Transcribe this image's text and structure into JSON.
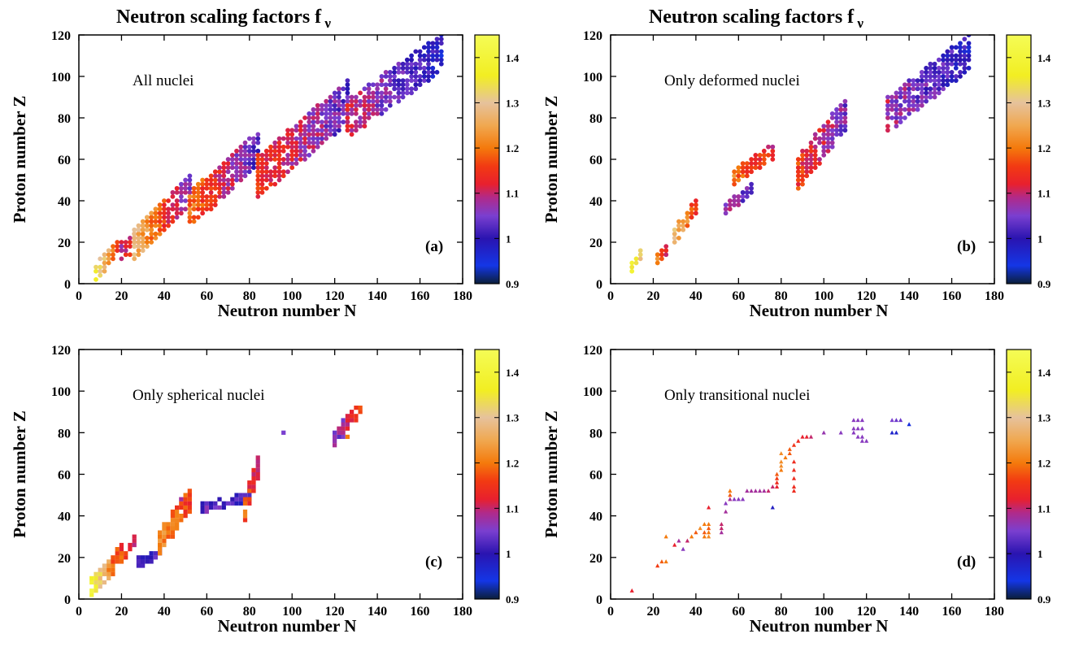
{
  "colormap": {
    "range": [
      0.9,
      1.45
    ],
    "stops": [
      [
        0.9,
        "#0b1f3a"
      ],
      [
        0.94,
        "#1436e6"
      ],
      [
        1.0,
        "#2a14b0"
      ],
      [
        1.05,
        "#7a3fd0"
      ],
      [
        1.09,
        "#b02a8a"
      ],
      [
        1.12,
        "#e8202e"
      ],
      [
        1.16,
        "#f23a12"
      ],
      [
        1.2,
        "#f47a0c"
      ],
      [
        1.25,
        "#f0a850"
      ],
      [
        1.3,
        "#e6c29c"
      ],
      [
        1.36,
        "#f2ee22"
      ],
      [
        1.45,
        "#f4fc56"
      ]
    ]
  },
  "colorbar_ticks": [
    "0.9",
    "1",
    "1.1",
    "1.2",
    "1.3",
    "1.4"
  ],
  "axis_titles": {
    "x": "Neutron number  N",
    "y": "Proton number  Z"
  },
  "chart_data": [
    {
      "type": "scatter",
      "panel_label": "(a)",
      "annotation": "All nuclei",
      "title": "Neutron scaling factors f",
      "title_sub": "ν",
      "marker": "circle",
      "xlabel": "Neutron number  N",
      "ylabel": "Proton number  Z",
      "xlim": [
        0,
        180
      ],
      "ylim": [
        0,
        120
      ],
      "xticks": [
        "0",
        "20",
        "40",
        "60",
        "80",
        "100",
        "120",
        "140",
        "160",
        "180"
      ],
      "yticks": [
        "0",
        "20",
        "40",
        "60",
        "80",
        "100",
        "120"
      ],
      "colorbar": {
        "min": 0.9,
        "max": 1.45
      },
      "regions": [
        {
          "n0": 8,
          "n1": 20,
          "z0": 6,
          "z1": 20,
          "f0": 1.36,
          "f1": 1.12
        },
        {
          "n0": 20,
          "n1": 34,
          "z0": 14,
          "z1": 30,
          "f0": 1.1,
          "f1": 1.22
        },
        {
          "n0": 26,
          "n1": 52,
          "z0": 20,
          "z1": 46,
          "f0": 1.28,
          "f1": 1.05
        },
        {
          "n0": 52,
          "n1": 84,
          "z0": 36,
          "z1": 66,
          "f0": 1.2,
          "f1": 1.02
        },
        {
          "n0": 84,
          "n1": 126,
          "z0": 52,
          "z1": 88,
          "f0": 1.15,
          "f1": 1.03
        },
        {
          "n0": 126,
          "n1": 170,
          "z0": 80,
          "z1": 112,
          "f0": 1.1,
          "f1": 0.98
        }
      ]
    },
    {
      "type": "scatter",
      "panel_label": "(b)",
      "annotation": "Only deformed nuclei",
      "title": "Neutron scaling factors f",
      "title_sub": "ν",
      "marker": "circle",
      "xlabel": "Neutron number  N",
      "ylabel": "Proton number  Z",
      "xlim": [
        0,
        180
      ],
      "ylim": [
        0,
        120
      ],
      "xticks": [
        "0",
        "20",
        "40",
        "60",
        "80",
        "100",
        "120",
        "140",
        "160",
        "180"
      ],
      "yticks": [
        "0",
        "20",
        "40",
        "60",
        "80",
        "100",
        "120"
      ],
      "colorbar": {
        "min": 0.9,
        "max": 1.45
      },
      "regions": [
        {
          "n0": 10,
          "n1": 14,
          "z0": 8,
          "z1": 14,
          "f0": 1.38,
          "f1": 1.3
        },
        {
          "n0": 22,
          "n1": 26,
          "z0": 12,
          "z1": 16,
          "f0": 1.2,
          "f1": 1.12
        },
        {
          "n0": 30,
          "n1": 40,
          "z0": 24,
          "z1": 38,
          "f0": 1.28,
          "f1": 1.15
        },
        {
          "n0": 54,
          "n1": 66,
          "z0": 36,
          "z1": 46,
          "f0": 1.08,
          "f1": 1.04
        },
        {
          "n0": 58,
          "n1": 76,
          "z0": 52,
          "z1": 64,
          "f0": 1.2,
          "f1": 1.12
        },
        {
          "n0": 88,
          "n1": 110,
          "z0": 54,
          "z1": 82,
          "f0": 1.15,
          "f1": 1.05
        },
        {
          "n0": 130,
          "n1": 168,
          "z0": 82,
          "z1": 112,
          "f0": 1.08,
          "f1": 0.99
        }
      ]
    },
    {
      "type": "heatmap",
      "panel_label": "(c)",
      "annotation": "Only spherical nuclei",
      "marker": "square",
      "xlabel": "Neutron number  N",
      "ylabel": "Proton number  Z",
      "xlim": [
        0,
        180
      ],
      "ylim": [
        0,
        120
      ],
      "xticks": [
        "0",
        "20",
        "40",
        "60",
        "80",
        "100",
        "120",
        "140",
        "160",
        "180"
      ],
      "yticks": [
        "0",
        "20",
        "40",
        "60",
        "80",
        "100",
        "120"
      ],
      "colorbar": {
        "min": 0.9,
        "max": 1.45
      },
      "regions": [
        {
          "n0": 6,
          "n1": 20,
          "z0": 6,
          "z1": 22,
          "f0": 1.38,
          "f1": 1.12
        },
        {
          "n0": 20,
          "n1": 26,
          "z0": 20,
          "z1": 28,
          "f0": 1.18,
          "f1": 1.1
        },
        {
          "n0": 28,
          "n1": 38,
          "z0": 18,
          "z1": 22,
          "f0": 1.02,
          "f1": 1.0
        },
        {
          "n0": 38,
          "n1": 52,
          "z0": 28,
          "z1": 48,
          "f0": 1.22,
          "f1": 1.15
        },
        {
          "n0": 58,
          "n1": 80,
          "z0": 44,
          "z1": 50,
          "f0": 1.03,
          "f1": 1.0
        },
        {
          "n0": 78,
          "n1": 84,
          "z0": 44,
          "z1": 64,
          "f0": 1.18,
          "f1": 1.08
        },
        {
          "n0": 120,
          "n1": 132,
          "z0": 78,
          "z1": 92,
          "f0": 1.05,
          "f1": 1.15
        }
      ],
      "points": [
        {
          "n": 96,
          "z": 80,
          "f": 1.05
        },
        {
          "n": 126,
          "z": 78,
          "f": 1.2
        },
        {
          "n": 48,
          "z": 48,
          "f": 1.08
        }
      ]
    },
    {
      "type": "scatter",
      "panel_label": "(d)",
      "annotation": "Only transitional nuclei",
      "marker": "triangle",
      "xlabel": "Neutron number  N",
      "ylabel": "Proton number  Z",
      "xlim": [
        0,
        180
      ],
      "ylim": [
        0,
        120
      ],
      "xticks": [
        "0",
        "20",
        "40",
        "60",
        "80",
        "100",
        "120",
        "140",
        "160",
        "180"
      ],
      "yticks": [
        "0",
        "20",
        "40",
        "60",
        "80",
        "100",
        "120"
      ],
      "colorbar": {
        "min": 0.9,
        "max": 1.45
      },
      "points": [
        {
          "n": 10,
          "z": 4,
          "f": 1.12
        },
        {
          "n": 22,
          "z": 16,
          "f": 1.16
        },
        {
          "n": 24,
          "z": 18,
          "f": 1.18
        },
        {
          "n": 26,
          "z": 18,
          "f": 1.2
        },
        {
          "n": 26,
          "z": 30,
          "f": 1.2
        },
        {
          "n": 30,
          "z": 26,
          "f": 1.12
        },
        {
          "n": 32,
          "z": 28,
          "f": 1.08
        },
        {
          "n": 34,
          "z": 24,
          "f": 1.06
        },
        {
          "n": 36,
          "z": 28,
          "f": 1.1
        },
        {
          "n": 38,
          "z": 30,
          "f": 1.2
        },
        {
          "n": 40,
          "z": 32,
          "f": 1.18
        },
        {
          "n": 42,
          "z": 34,
          "f": 1.22
        },
        {
          "n": 44,
          "z": 36,
          "f": 1.2
        },
        {
          "n": 44,
          "z": 32,
          "f": 1.18
        },
        {
          "n": 44,
          "z": 30,
          "f": 1.2
        },
        {
          "n": 46,
          "z": 36,
          "f": 1.2
        },
        {
          "n": 46,
          "z": 34,
          "f": 1.18
        },
        {
          "n": 46,
          "z": 32,
          "f": 1.2
        },
        {
          "n": 46,
          "z": 30,
          "f": 1.22
        },
        {
          "n": 46,
          "z": 44,
          "f": 1.12
        },
        {
          "n": 52,
          "z": 34,
          "f": 1.1
        },
        {
          "n": 52,
          "z": 36,
          "f": 1.1
        },
        {
          "n": 52,
          "z": 32,
          "f": 1.08
        },
        {
          "n": 54,
          "z": 42,
          "f": 1.08
        },
        {
          "n": 54,
          "z": 46,
          "f": 1.06
        },
        {
          "n": 56,
          "z": 48,
          "f": 1.08
        },
        {
          "n": 56,
          "z": 50,
          "f": 1.18
        },
        {
          "n": 56,
          "z": 52,
          "f": 1.2
        },
        {
          "n": 58,
          "z": 48,
          "f": 1.06
        },
        {
          "n": 60,
          "z": 48,
          "f": 1.06
        },
        {
          "n": 62,
          "z": 48,
          "f": 1.06
        },
        {
          "n": 64,
          "z": 52,
          "f": 1.08
        },
        {
          "n": 66,
          "z": 52,
          "f": 1.08
        },
        {
          "n": 68,
          "z": 52,
          "f": 1.08
        },
        {
          "n": 70,
          "z": 52,
          "f": 1.08
        },
        {
          "n": 72,
          "z": 52,
          "f": 1.08
        },
        {
          "n": 74,
          "z": 52,
          "f": 1.1
        },
        {
          "n": 76,
          "z": 44,
          "f": 0.98
        },
        {
          "n": 76,
          "z": 54,
          "f": 1.1
        },
        {
          "n": 78,
          "z": 54,
          "f": 1.12
        },
        {
          "n": 78,
          "z": 56,
          "f": 1.14
        },
        {
          "n": 78,
          "z": 58,
          "f": 1.16
        },
        {
          "n": 78,
          "z": 60,
          "f": 1.18
        },
        {
          "n": 80,
          "z": 62,
          "f": 1.2
        },
        {
          "n": 80,
          "z": 64,
          "f": 1.22
        },
        {
          "n": 80,
          "z": 66,
          "f": 1.22
        },
        {
          "n": 80,
          "z": 70,
          "f": 1.22
        },
        {
          "n": 82,
          "z": 68,
          "f": 1.2
        },
        {
          "n": 84,
          "z": 70,
          "f": 1.18
        },
        {
          "n": 84,
          "z": 72,
          "f": 1.18
        },
        {
          "n": 86,
          "z": 52,
          "f": 1.14
        },
        {
          "n": 86,
          "z": 54,
          "f": 1.14
        },
        {
          "n": 86,
          "z": 58,
          "f": 1.14
        },
        {
          "n": 86,
          "z": 62,
          "f": 1.14
        },
        {
          "n": 86,
          "z": 66,
          "f": 1.14
        },
        {
          "n": 86,
          "z": 74,
          "f": 1.15
        },
        {
          "n": 88,
          "z": 76,
          "f": 1.14
        },
        {
          "n": 90,
          "z": 78,
          "f": 1.12
        },
        {
          "n": 92,
          "z": 78,
          "f": 1.12
        },
        {
          "n": 94,
          "z": 78,
          "f": 1.1
        },
        {
          "n": 100,
          "z": 80,
          "f": 1.07
        },
        {
          "n": 108,
          "z": 80,
          "f": 1.06
        },
        {
          "n": 114,
          "z": 86,
          "f": 1.06
        },
        {
          "n": 116,
          "z": 86,
          "f": 1.06
        },
        {
          "n": 118,
          "z": 86,
          "f": 1.06
        },
        {
          "n": 114,
          "z": 82,
          "f": 1.06
        },
        {
          "n": 116,
          "z": 82,
          "f": 1.06
        },
        {
          "n": 118,
          "z": 82,
          "f": 1.06
        },
        {
          "n": 114,
          "z": 80,
          "f": 1.06
        },
        {
          "n": 116,
          "z": 78,
          "f": 1.06
        },
        {
          "n": 118,
          "z": 78,
          "f": 1.06
        },
        {
          "n": 118,
          "z": 76,
          "f": 1.06
        },
        {
          "n": 120,
          "z": 76,
          "f": 1.06
        },
        {
          "n": 132,
          "z": 86,
          "f": 1.05
        },
        {
          "n": 134,
          "z": 86,
          "f": 1.04
        },
        {
          "n": 136,
          "z": 86,
          "f": 1.04
        },
        {
          "n": 132,
          "z": 80,
          "f": 0.97
        },
        {
          "n": 134,
          "z": 80,
          "f": 0.97
        },
        {
          "n": 140,
          "z": 84,
          "f": 0.95
        }
      ]
    }
  ]
}
